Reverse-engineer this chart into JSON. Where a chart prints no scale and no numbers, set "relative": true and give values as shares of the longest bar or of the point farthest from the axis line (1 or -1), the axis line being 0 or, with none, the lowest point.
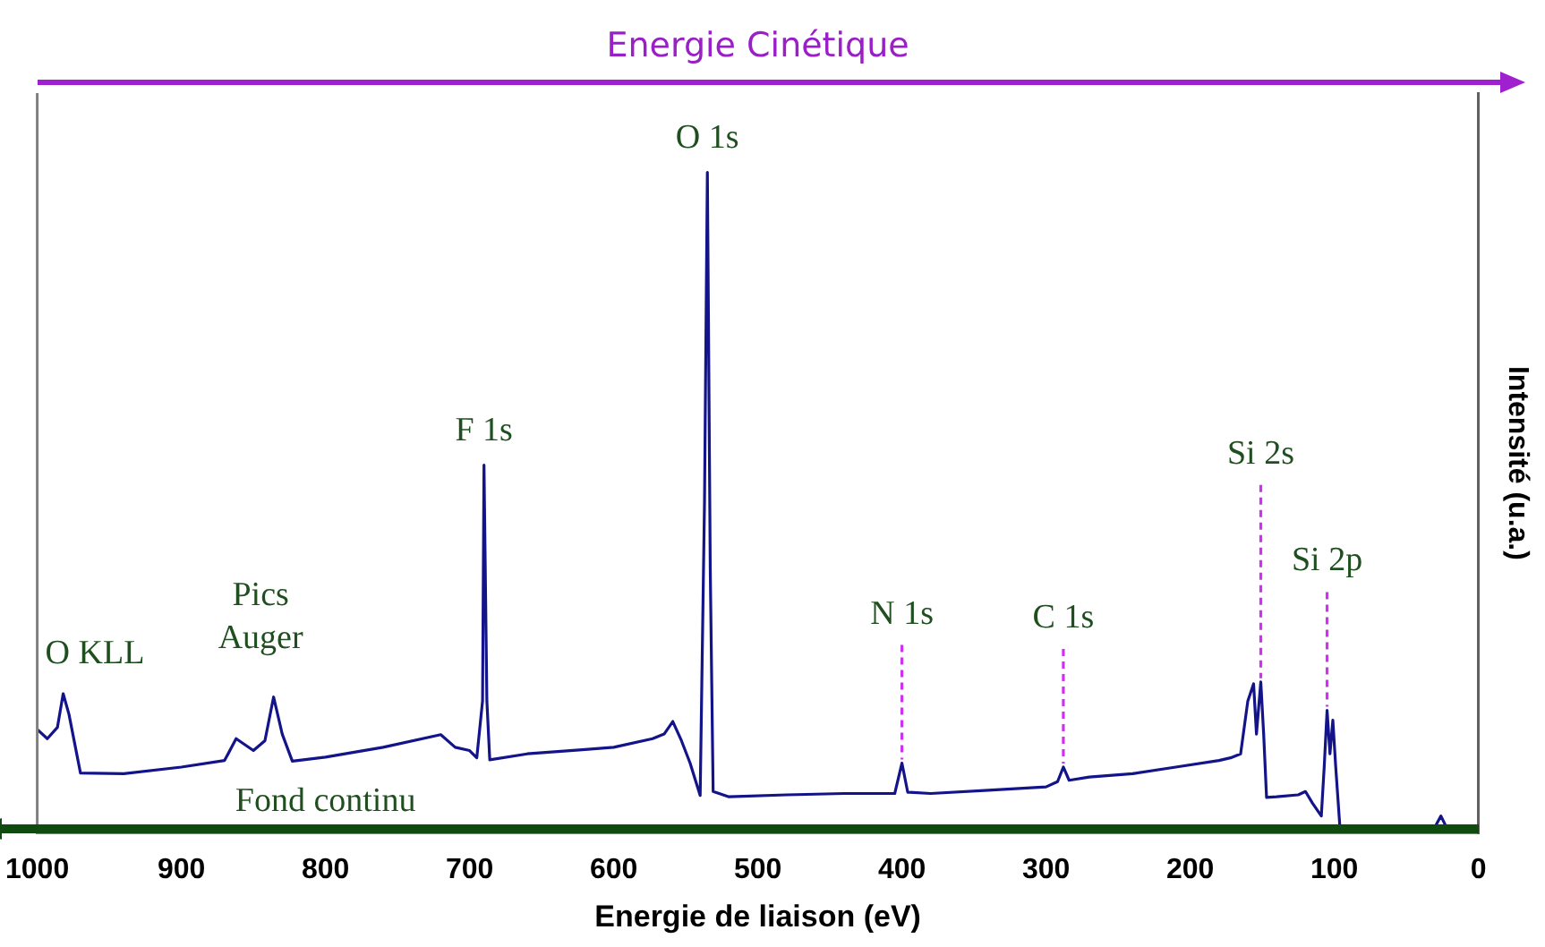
{
  "chart_data": {
    "type": "line",
    "relative": true,
    "xlabel": "Energie de liaison (eV)",
    "ylabel": "Intensité (u.a.)",
    "xlim": [
      1000,
      0
    ],
    "xticks": [
      1000,
      900,
      800,
      700,
      600,
      500,
      400,
      300,
      200,
      100,
      0
    ],
    "grid": false,
    "legend": false,
    "marker": "none",
    "line_style": "solid",
    "series": [
      {
        "color": "#14148a",
        "x": [
          1000,
          993,
          986,
          982,
          978,
          970,
          940,
          900,
          870,
          862,
          850,
          842,
          836,
          830,
          823,
          800,
          760,
          720,
          710,
          700,
          695,
          691,
          690,
          688,
          686,
          660,
          624,
          600,
          573,
          565,
          559,
          553,
          547,
          540,
          537,
          535,
          533,
          531,
          520,
          480,
          440,
          405,
          400,
          396,
          380,
          340,
          300,
          292,
          288,
          284,
          270,
          240,
          210,
          180,
          172,
          165,
          160,
          156,
          154,
          151,
          149,
          147,
          140,
          125,
          120,
          115,
          109,
          107,
          105,
          103,
          101,
          99,
          96,
          90,
          70,
          50,
          30,
          26,
          22,
          10,
          0
        ],
        "values": [
          0.157,
          0.143,
          0.16,
          0.211,
          0.18,
          0.091,
          0.09,
          0.1,
          0.11,
          0.143,
          0.125,
          0.14,
          0.206,
          0.15,
          0.109,
          0.115,
          0.13,
          0.149,
          0.13,
          0.125,
          0.114,
          0.2,
          0.557,
          0.2,
          0.111,
          0.12,
          0.126,
          0.13,
          0.143,
          0.15,
          0.169,
          0.14,
          0.106,
          0.057,
          0.5,
          1.0,
          0.4,
          0.063,
          0.055,
          0.058,
          0.06,
          0.06,
          0.106,
          0.062,
          0.06,
          0.065,
          0.07,
          0.078,
          0.1,
          0.08,
          0.085,
          0.09,
          0.1,
          0.11,
          0.114,
          0.12,
          0.2,
          0.226,
          0.15,
          0.229,
          0.15,
          0.054,
          0.055,
          0.058,
          0.063,
          0.045,
          0.026,
          0.1,
          0.186,
          0.12,
          0.171,
          0.1,
          0.006,
          0.005,
          0.006,
          0.008,
          0.01,
          0.026,
          0.008,
          0.004,
          0.002
        ]
      }
    ],
    "annotations": [
      "Energie Cinétique",
      "O KLL",
      "Pics\nAuger",
      {
        "text": "F 1s",
        "x": 690,
        "y": 0.557
      },
      {
        "text": "O 1s",
        "x": 535,
        "y": 1.0
      },
      {
        "text": "N 1s",
        "x": 400,
        "y": 0.106
      },
      {
        "text": "C 1s",
        "x": 288,
        "y": 0.1
      },
      {
        "text": "Si 2s",
        "x": 151,
        "y": 0.229
      },
      {
        "text": "Si 2p",
        "x": 105,
        "y": 0.186
      },
      "Fond continu"
    ]
  }
}
